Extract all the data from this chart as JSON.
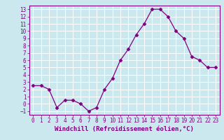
{
  "x": [
    0,
    1,
    2,
    3,
    4,
    5,
    6,
    7,
    8,
    9,
    10,
    11,
    12,
    13,
    14,
    15,
    16,
    17,
    18,
    19,
    20,
    21,
    22,
    23
  ],
  "y": [
    2.5,
    2.5,
    2.0,
    -0.5,
    0.5,
    0.5,
    0.0,
    -1.0,
    -0.5,
    2.0,
    3.5,
    6.0,
    7.5,
    9.5,
    11.0,
    13.0,
    13.0,
    12.0,
    10.0,
    9.0,
    6.5,
    6.0,
    5.0,
    5.0
  ],
  "line_color": "#800080",
  "marker": "D",
  "marker_size": 2.5,
  "xlabel": "Windchill (Refroidissement éolien,°C)",
  "xlim": [
    -0.5,
    23.5
  ],
  "ylim": [
    -1.5,
    13.5
  ],
  "yticks": [
    -1,
    0,
    1,
    2,
    3,
    4,
    5,
    6,
    7,
    8,
    9,
    10,
    11,
    12,
    13
  ],
  "xticks": [
    0,
    1,
    2,
    3,
    4,
    5,
    6,
    7,
    8,
    9,
    10,
    11,
    12,
    13,
    14,
    15,
    16,
    17,
    18,
    19,
    20,
    21,
    22,
    23
  ],
  "bg_color": "#cce8ef",
  "grid_color": "#b0d8e0",
  "line_purple": "#800080",
  "tick_fontsize": 5.5,
  "label_fontsize": 6.5
}
